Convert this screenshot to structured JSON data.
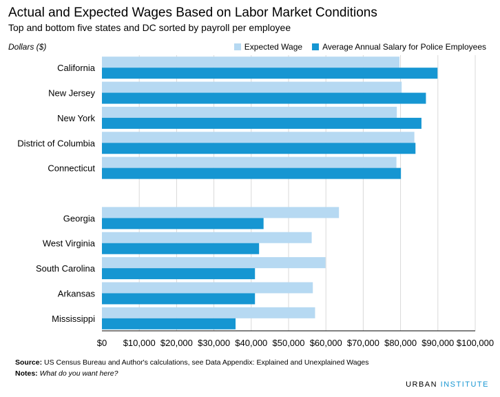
{
  "header": {
    "title": "Actual and Expected Wages Based on Labor Market Conditions",
    "subtitle": "Top and bottom five states and DC  sorted by payroll per employee",
    "unit_label": "Dollars ($)"
  },
  "footer": {
    "source_label": "Source:",
    "source_text": "US Census Bureau and Author's calculations, see Data Appendix: Explained and Unexplained Wages",
    "notes_label": "Notes:",
    "notes_text": "What do you want here?",
    "brand_main": "URBAN",
    "brand_light": "INSTITUTE"
  },
  "colors": {
    "expected": "#b6d9f2",
    "actual": "#1696d2",
    "grid": "#d9d9d9"
  },
  "chart_data": {
    "type": "bar",
    "orientation": "horizontal",
    "categories": [
      "California",
      "New Jersey",
      "New York",
      "District of Columbia",
      "Connecticut",
      "",
      "Georgia",
      "West Virginia",
      "South Carolina",
      "Arkansas",
      "Mississippi"
    ],
    "series": [
      {
        "name": "Expected Wage",
        "values": [
          79700,
          80300,
          79000,
          83700,
          78900,
          null,
          63500,
          56200,
          59900,
          56500,
          57100
        ]
      },
      {
        "name": "Average Annual Salary for Police Employees",
        "values": [
          89900,
          86800,
          85600,
          84000,
          80100,
          null,
          43300,
          42100,
          41000,
          41000,
          35800
        ]
      }
    ],
    "xlim": [
      0,
      100000
    ],
    "xticks": [
      0,
      10000,
      20000,
      30000,
      40000,
      50000,
      60000,
      70000,
      80000,
      90000,
      100000
    ],
    "xtick_labels": [
      "$0",
      "$10,000",
      "$20,000",
      "$30,000",
      "$40,000",
      "$50,000",
      "$60,000",
      "$70,000",
      "$80,000",
      "$90,000",
      "$100,000"
    ],
    "grid": true,
    "legend_position": "top-right"
  }
}
